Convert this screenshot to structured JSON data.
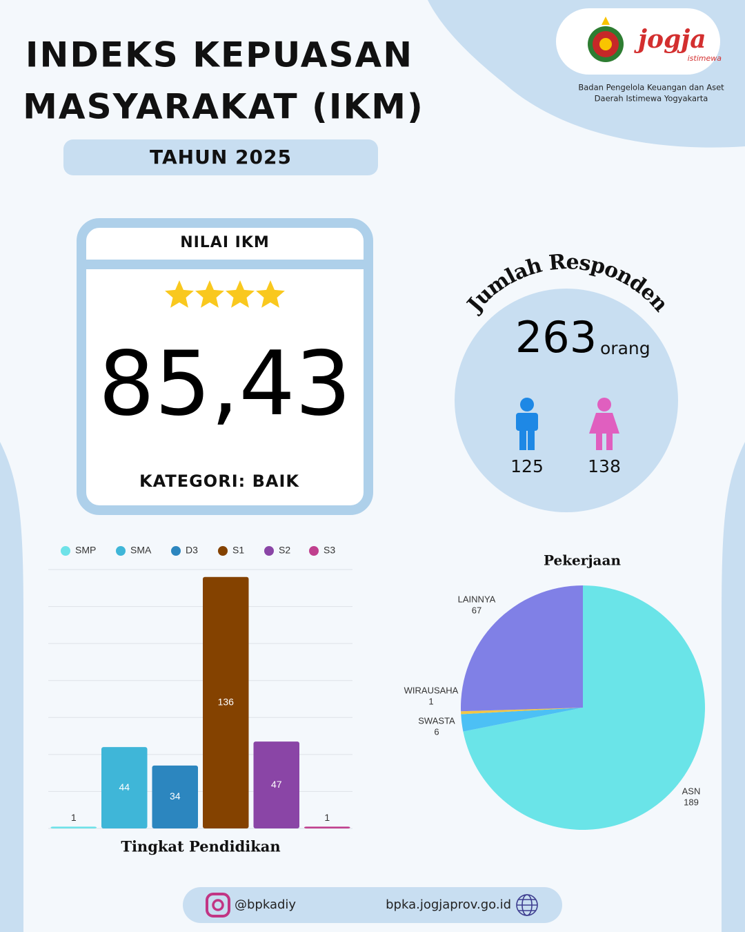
{
  "header": {
    "title_lines": [
      "INDEKS KEPUASAN",
      "MASYARAKAT (IKM)"
    ],
    "year": "TAHUN 2025",
    "logo_text": "jogja",
    "logo_subtext": "istimewa",
    "org_lines": [
      "Badan Pengelola Keuangan dan Aset",
      "Daerah Istimewa Yogyakarta"
    ]
  },
  "ikm": {
    "heading": "NILAI IKM",
    "stars": 4,
    "score": "85,43",
    "category": "KATEGORI: BAIK"
  },
  "respondents": {
    "title": "Jumlah Responden",
    "total": 263,
    "unit": "orang",
    "male": 125,
    "female": 138
  },
  "chart_data": [
    {
      "type": "bar",
      "title": "Tingkat Pendidikan",
      "categories": [
        "SMP",
        "SMA",
        "D3",
        "S1",
        "S2",
        "S3"
      ],
      "values": [
        1,
        44,
        34,
        136,
        47,
        1
      ],
      "colors": [
        "#6ee2e8",
        "#3fb6d8",
        "#2c86bf",
        "#844200",
        "#8a45a6",
        "#c0408e"
      ],
      "ylim": [
        0,
        140
      ],
      "yticks": [
        0,
        20,
        40,
        60,
        80,
        100,
        120,
        140
      ],
      "grid": true,
      "legend": "top"
    },
    {
      "type": "pie",
      "title": "Pekerjaan",
      "categories": [
        "ASN",
        "SWASTA",
        "WIRAUSAHA",
        "LAINNYA"
      ],
      "values": [
        189,
        6,
        1,
        67
      ],
      "colors": [
        "#6ae4e8",
        "#4cc0f5",
        "#f3c645",
        "#8080e6"
      ]
    }
  ],
  "footer": {
    "instagram": "@bpkadiy",
    "website": "bpka.jogjaprov.go.id"
  }
}
